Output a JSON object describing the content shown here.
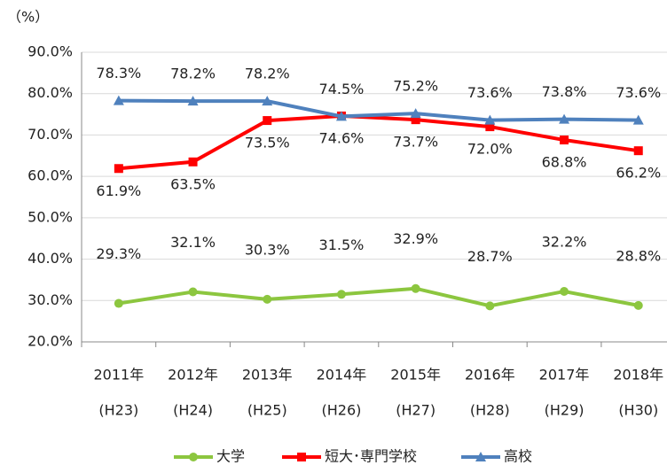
{
  "chart_data": {
    "type": "line",
    "unit_label": "（%）",
    "categories": [
      "2011年",
      "2012年",
      "2013年",
      "2014年",
      "2015年",
      "2016年",
      "2017年",
      "2018年"
    ],
    "category_sublabels": [
      "(H23)",
      "(H24)",
      "(H25)",
      "(H26)",
      "(H27)",
      "(H28)",
      "(H29)",
      "(H30)"
    ],
    "ylim": [
      20,
      90
    ],
    "yticks": [
      {
        "value": 20,
        "label": "20.0%"
      },
      {
        "value": 30,
        "label": "30.0%"
      },
      {
        "value": 40,
        "label": "40.0%"
      },
      {
        "value": 50,
        "label": "50.0%"
      },
      {
        "value": 60,
        "label": "60.0%"
      },
      {
        "value": 70,
        "label": "70.0%"
      },
      {
        "value": 80,
        "label": "80.0%"
      },
      {
        "value": 90,
        "label": "90.0%"
      }
    ],
    "grid": true,
    "legend": "bottom",
    "series": [
      {
        "name": "大学",
        "color": "#8cc63f",
        "marker": "circle",
        "values": [
          29.3,
          32.1,
          30.3,
          31.5,
          32.9,
          28.7,
          32.2,
          28.8
        ],
        "value_labels": [
          "29.3%",
          "32.1%",
          "30.3%",
          "31.5%",
          "32.9%",
          "28.7%",
          "32.2%",
          "28.8%"
        ]
      },
      {
        "name": "短大･専門学校",
        "color": "#ff0000",
        "marker": "square",
        "values": [
          61.9,
          63.5,
          73.5,
          74.6,
          73.7,
          72.0,
          68.8,
          66.2
        ],
        "value_labels": [
          "61.9%",
          "63.5%",
          "73.5%",
          "74.6%",
          "73.7%",
          "72.0%",
          "68.8%",
          "66.2%"
        ]
      },
      {
        "name": "高校",
        "color": "#4f81bd",
        "marker": "triangle",
        "values": [
          78.3,
          78.2,
          78.2,
          74.5,
          75.2,
          73.6,
          73.8,
          73.6
        ],
        "value_labels": [
          "78.3%",
          "78.2%",
          "78.2%",
          "74.5%",
          "75.2%",
          "73.6%",
          "73.8%",
          "73.6%"
        ]
      }
    ]
  }
}
